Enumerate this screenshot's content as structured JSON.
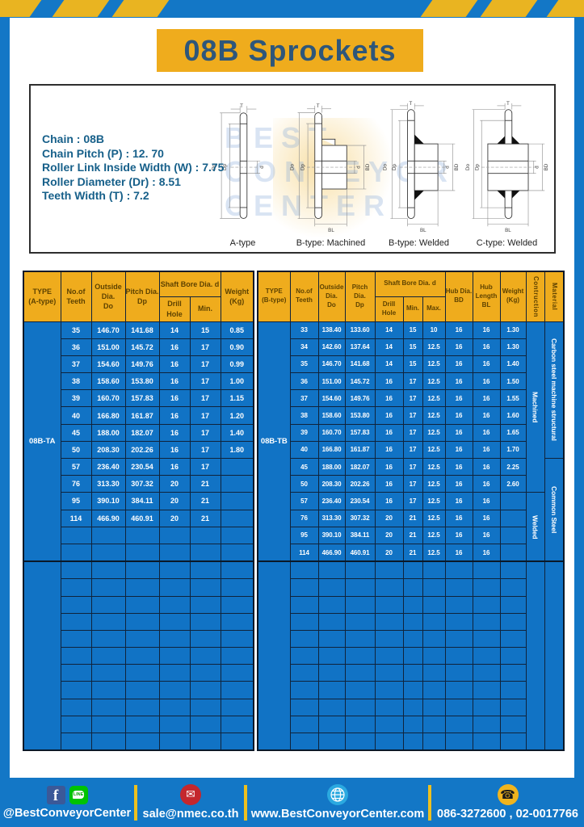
{
  "header": {
    "title": "08B Sprockets"
  },
  "specs": [
    "Chain : 08B",
    "Chain Pitch (P) : 12. 70",
    "Roller Link Inside Width (W) : 7.75",
    "Roller Diameter (Dr) : 8.51",
    "Teeth Width (T) : 7.2"
  ],
  "watermark": [
    "BEST",
    "CONVEYOR",
    "CENTER"
  ],
  "diagram_labels": {
    "a_type": "A-type",
    "b_machined": "B-type: Machined",
    "b_welded": "B-type: Welded",
    "c_welded": "C-type: Welded"
  },
  "dims": {
    "T": "T",
    "Do": "Do",
    "Dp": "Dp",
    "d": "d",
    "BD": "BD",
    "BL": "BL"
  },
  "left_table": {
    "type_label": [
      "TYPE",
      "(A-type)"
    ],
    "col_teeth": [
      "No.of",
      "Teeth"
    ],
    "col_outside": [
      "Outside",
      "Dia.",
      "Do"
    ],
    "col_pitch": [
      "Pitch Dia.",
      "Dp"
    ],
    "col_shaft": "Shaft Bore Dia. d",
    "col_drill": "Drill Hole",
    "col_min": "Min.",
    "col_weight": [
      "Weight",
      "(Kg)"
    ],
    "group_label": "08B-TA",
    "rows": [
      [
        "35",
        "146.70",
        "141.68",
        "14",
        "15",
        "0.85"
      ],
      [
        "36",
        "151.00",
        "145.72",
        "16",
        "17",
        "0.90"
      ],
      [
        "37",
        "154.60",
        "149.76",
        "16",
        "17",
        "0.99"
      ],
      [
        "38",
        "158.60",
        "153.80",
        "16",
        "17",
        "1.00"
      ],
      [
        "39",
        "160.70",
        "157.83",
        "16",
        "17",
        "1.15"
      ],
      [
        "40",
        "166.80",
        "161.87",
        "16",
        "17",
        "1.20"
      ],
      [
        "45",
        "188.00",
        "182.07",
        "16",
        "17",
        "1.40"
      ],
      [
        "50",
        "208.30",
        "202.26",
        "16",
        "17",
        "1.80"
      ],
      [
        "57",
        "236.40",
        "230.54",
        "16",
        "17",
        ""
      ],
      [
        "76",
        "313.30",
        "307.32",
        "20",
        "21",
        ""
      ],
      [
        "95",
        "390.10",
        "384.11",
        "20",
        "21",
        ""
      ],
      [
        "114",
        "466.90",
        "460.91",
        "20",
        "21",
        ""
      ]
    ],
    "empty_rows_section1": 2,
    "empty_rows_section2": 11
  },
  "right_table": {
    "type_label": [
      "TYPE",
      "(B-type)"
    ],
    "col_teeth": [
      "No.of",
      "Teeth"
    ],
    "col_outside": [
      "Outside",
      "Dia.",
      "Do"
    ],
    "col_pitch": [
      "Pitch Dia.",
      "Dp"
    ],
    "col_shaft": "Shaft Bore Dia. d",
    "col_drill": "Drill Hole",
    "col_min": "Min.",
    "col_max": "Max.",
    "col_hub_dia": [
      "Hub Dia.",
      "BD"
    ],
    "col_hub_len": [
      "Hub",
      "Length",
      "BL"
    ],
    "col_weight": [
      "Weight",
      "(Kg)"
    ],
    "col_construction": "Contruction",
    "col_material": "Material",
    "group_label": "08B-TB",
    "rows": [
      [
        "33",
        "138.40",
        "133.60",
        "14",
        "15",
        "10",
        "16",
        "16",
        "1.30"
      ],
      [
        "34",
        "142.60",
        "137.64",
        "14",
        "15",
        "12.5",
        "16",
        "16",
        "1.30"
      ],
      [
        "35",
        "146.70",
        "141.68",
        "14",
        "15",
        "12.5",
        "16",
        "16",
        "1.40"
      ],
      [
        "36",
        "151.00",
        "145.72",
        "16",
        "17",
        "12.5",
        "16",
        "16",
        "1.50"
      ],
      [
        "37",
        "154.60",
        "149.76",
        "16",
        "17",
        "12.5",
        "16",
        "16",
        "1.55"
      ],
      [
        "38",
        "158.60",
        "153.80",
        "16",
        "17",
        "12.5",
        "16",
        "16",
        "1.60"
      ],
      [
        "39",
        "160.70",
        "157.83",
        "16",
        "17",
        "12.5",
        "16",
        "16",
        "1.65"
      ],
      [
        "40",
        "166.80",
        "161.87",
        "16",
        "17",
        "12.5",
        "16",
        "16",
        "1.70"
      ],
      [
        "45",
        "188.00",
        "182.07",
        "16",
        "17",
        "12.5",
        "16",
        "16",
        "2.25"
      ],
      [
        "50",
        "208.30",
        "202.26",
        "16",
        "17",
        "12.5",
        "16",
        "16",
        "2.60"
      ],
      [
        "57",
        "236.40",
        "230.54",
        "16",
        "17",
        "12.5",
        "16",
        "16",
        ""
      ],
      [
        "76",
        "313.30",
        "307.32",
        "20",
        "21",
        "12.5",
        "16",
        "16",
        ""
      ],
      [
        "95",
        "390.10",
        "384.11",
        "20",
        "21",
        "12.5",
        "16",
        "16",
        ""
      ],
      [
        "114",
        "466.90",
        "460.91",
        "20",
        "21",
        "12.5",
        "16",
        "16",
        ""
      ]
    ],
    "construction_groups": [
      {
        "label": "Machined",
        "span": 10
      },
      {
        "label": "Welded",
        "span": 4
      }
    ],
    "material_groups": [
      {
        "label": "Carbon steel  machine structural",
        "span": 8
      },
      {
        "label": "Common  Steel",
        "span": 6
      }
    ],
    "empty_rows_section2": 11
  },
  "footer": {
    "facebook_letter": "f",
    "line_text": "LINE",
    "mail_glyph": "✉",
    "phone_glyph": "☎",
    "items": [
      {
        "icon": "facebook-line",
        "label": "@BestConveyorCenter"
      },
      {
        "icon": "email",
        "label": "sale@nmec.co.th"
      },
      {
        "icon": "globe",
        "label": "www.BestConveyorCenter.com"
      },
      {
        "icon": "phone",
        "label": "086-3272600 , 02-0017766"
      }
    ]
  },
  "colors": {
    "brand_blue": "#1377C6",
    "brand_yellow": "#EFAC1D",
    "table_cell_blue": "#1173C5",
    "table_border": "#10233B",
    "header_text_brown": "#5E4200",
    "title_text_navy": "#2E567A",
    "spec_text_teal": "#17608A"
  }
}
